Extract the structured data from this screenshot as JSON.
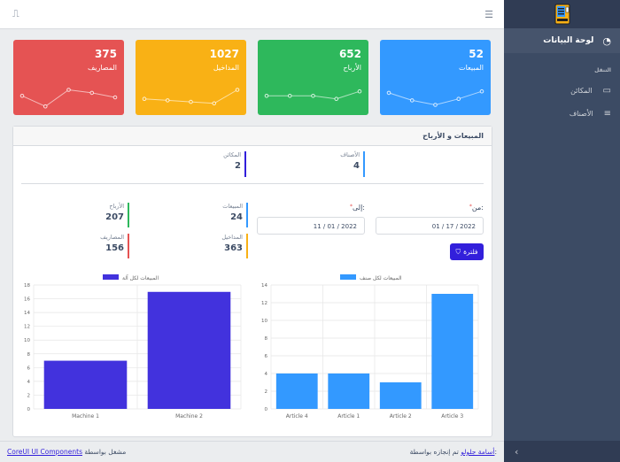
{
  "sidebar": {
    "dashboard_label": "لوحة البيانات",
    "section_title": "التنقل",
    "items": [
      {
        "label": "المكائن",
        "icon": "monitor-icon"
      },
      {
        "label": "الأصناف",
        "icon": "list-icon"
      }
    ]
  },
  "header": {
    "menu_icon": "☰",
    "user_icon": "⎍"
  },
  "cards": [
    {
      "value": "52",
      "label": "المبيعات",
      "color": "#3399ff",
      "points": [
        0.35,
        0.6,
        0.75,
        0.55,
        0.3
      ]
    },
    {
      "value": "652",
      "label": "الأرباح",
      "color": "#2eb85c",
      "points": [
        0.45,
        0.45,
        0.45,
        0.55,
        0.3
      ]
    },
    {
      "value": "1027",
      "label": "المداخيل",
      "color": "#f9b115",
      "points": [
        0.55,
        0.6,
        0.65,
        0.7,
        0.25
      ]
    },
    {
      "value": "375",
      "label": "المصاريف",
      "color": "#e55353",
      "points": [
        0.45,
        0.8,
        0.25,
        0.35,
        0.5
      ]
    }
  ],
  "panel": {
    "title": "المبيعات و الأرباح",
    "top_stats": [
      {
        "label": "الأصناف",
        "value": "4",
        "color": "#3399ff"
      },
      {
        "label": "المكائن",
        "value": "2",
        "color": "#321fdb"
      }
    ],
    "stats": [
      {
        "label": "المبيعات",
        "value": "24",
        "color": "#3399ff"
      },
      {
        "label": "الأرباح",
        "value": "207",
        "color": "#2eb85c"
      },
      {
        "label": "المداخيل",
        "value": "363",
        "color": "#f9b115"
      },
      {
        "label": "المصاريف",
        "value": "156",
        "color": "#e55353"
      }
    ],
    "from_label": "من:",
    "to_label": "إلى:",
    "from_value": "01 / 17 / 2022",
    "to_value": "11 / 01 / 2022",
    "filter_label": "فلترة",
    "star": "*"
  },
  "chart_data": [
    {
      "type": "bar",
      "title": "",
      "legend": "المبيعات لكل صنف",
      "categories": [
        "Article 4",
        "Article 1",
        "Article 2",
        "Article 3"
      ],
      "series": [
        {
          "name": "المبيعات لكل صنف",
          "values": [
            4,
            4,
            3,
            13
          ]
        }
      ],
      "ylim": [
        0,
        14
      ],
      "yticks": [
        0,
        2,
        4,
        6,
        8,
        10,
        12,
        14
      ],
      "color": "#3399ff"
    },
    {
      "type": "bar",
      "title": "",
      "legend": "المبيعات لكل آلة",
      "categories": [
        "Machine 1",
        "Machine 2"
      ],
      "series": [
        {
          "name": "المبيعات لكل آلة",
          "values": [
            7,
            17
          ]
        }
      ],
      "ylim": [
        0,
        18
      ],
      "yticks": [
        0,
        2,
        4,
        6,
        8,
        10,
        12,
        14,
        16,
        18
      ],
      "color": "#4232dd"
    }
  ],
  "footer": {
    "made_by": "تم إنجازه بواسطة:",
    "author": "أسامة جلولو",
    "powered_by": "مشغل بواسطة",
    "powered_link": "CoreUI UI Components"
  }
}
